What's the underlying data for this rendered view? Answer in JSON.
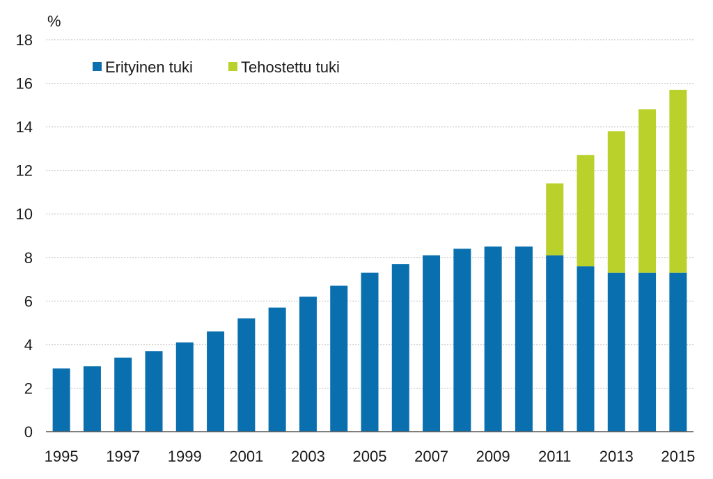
{
  "chart_data": {
    "type": "bar",
    "stacked": true,
    "unit_label": "%",
    "ylim": [
      0,
      18
    ],
    "y_ticks": [
      "0",
      "2",
      "4",
      "6",
      "8",
      "10",
      "12",
      "14",
      "16",
      "18"
    ],
    "categories": [
      "1995",
      "1996",
      "1997",
      "1998",
      "1999",
      "2000",
      "2001",
      "2002",
      "2003",
      "2004",
      "2005",
      "2006",
      "2007",
      "2008",
      "2009",
      "2010",
      "2011",
      "2012",
      "2013",
      "2014",
      "2015"
    ],
    "x_tick_labels": [
      "1995",
      "1997",
      "1999",
      "2001",
      "2003",
      "2005",
      "2007",
      "2009",
      "2011",
      "2013",
      "2015"
    ],
    "grid": true,
    "legend_position": "top-left",
    "series": [
      {
        "name": "Erityinen tuki",
        "color": "#0a6fae",
        "values": [
          2.9,
          3.0,
          3.4,
          3.7,
          4.1,
          4.6,
          5.2,
          5.7,
          6.2,
          6.7,
          7.3,
          7.7,
          8.1,
          8.4,
          8.5,
          8.5,
          8.1,
          7.6,
          7.3,
          7.3,
          7.3
        ]
      },
      {
        "name": "Tehostettu tuki",
        "color": "#b9d12a",
        "values": [
          0,
          0,
          0,
          0,
          0,
          0,
          0,
          0,
          0,
          0,
          0,
          0,
          0,
          0,
          0,
          0,
          3.3,
          5.1,
          6.5,
          7.5,
          8.4
        ]
      }
    ]
  }
}
